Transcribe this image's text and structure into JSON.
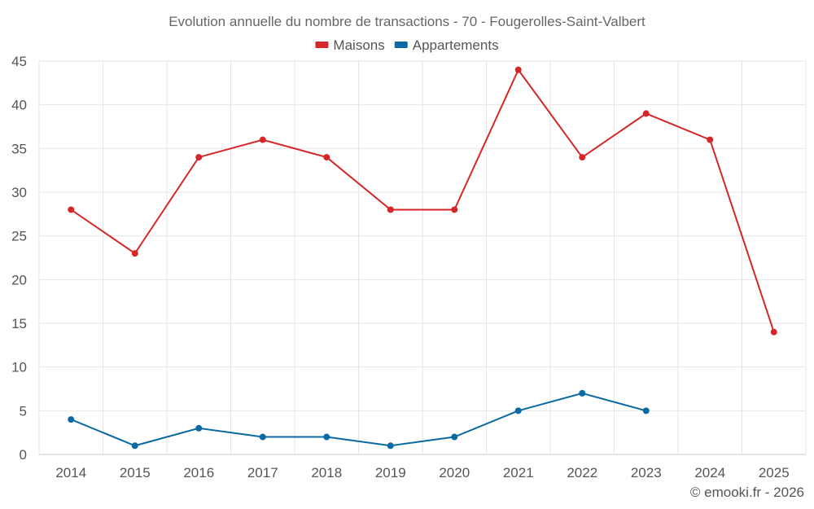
{
  "chart_data": {
    "type": "line",
    "title": "Evolution annuelle du nombre de transactions - 70 - Fougerolles-Saint-Valbert",
    "categories": [
      "2014",
      "2015",
      "2016",
      "2017",
      "2018",
      "2019",
      "2020",
      "2021",
      "2022",
      "2023",
      "2024",
      "2025"
    ],
    "ylim": [
      0,
      45
    ],
    "yticks": [
      0,
      5,
      10,
      15,
      20,
      25,
      30,
      35,
      40,
      45
    ],
    "grid": true,
    "legend_position": "top-center",
    "series": [
      {
        "name": "Maisons",
        "color": "#d62728",
        "values": [
          28,
          23,
          34,
          36,
          34,
          28,
          28,
          44,
          34,
          39,
          36,
          14
        ]
      },
      {
        "name": "Appartements",
        "color": "#0a6aa1",
        "values": [
          4,
          1,
          3,
          2,
          2,
          1,
          2,
          5,
          7,
          5,
          null,
          null
        ]
      }
    ]
  },
  "credit": "© emooki.fr - 2026"
}
